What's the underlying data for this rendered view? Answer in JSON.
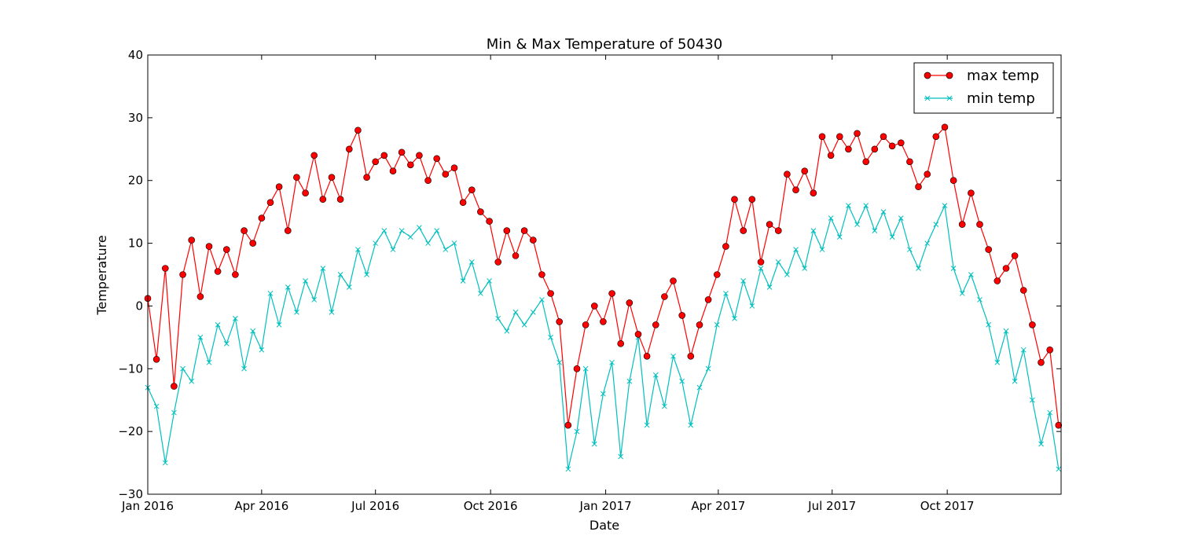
{
  "chart_data": {
    "type": "line",
    "title": "Min & Max Temperature of 50430",
    "xlabel": "Date",
    "ylabel": "Temperature",
    "xlim": [
      "2016-01-01",
      "2017-12-31"
    ],
    "ylim": [
      -30,
      40
    ],
    "yticks": [
      -30,
      -20,
      -10,
      0,
      10,
      20,
      30,
      40
    ],
    "xticks": [
      {
        "date": "2016-01-01",
        "label": "Jan 2016"
      },
      {
        "date": "2016-04-01",
        "label": "Apr 2016"
      },
      {
        "date": "2016-07-01",
        "label": "Jul 2016"
      },
      {
        "date": "2016-10-01",
        "label": "Oct 2016"
      },
      {
        "date": "2017-01-01",
        "label": "Jan 2017"
      },
      {
        "date": "2017-04-01",
        "label": "Apr 2017"
      },
      {
        "date": "2017-07-01",
        "label": "Jul 2017"
      },
      {
        "date": "2017-10-01",
        "label": "Oct 2017"
      }
    ],
    "grid": false,
    "legend_position": "top-right",
    "series": [
      {
        "name": "max temp",
        "color": "#ff0000",
        "marker": "circle",
        "points": [
          {
            "date": "2016-01-01",
            "value": 1.2
          },
          {
            "date": "2016-01-08",
            "value": -8.5
          },
          {
            "date": "2016-01-15",
            "value": 6.0
          },
          {
            "date": "2016-01-22",
            "value": -12.8
          },
          {
            "date": "2016-01-29",
            "value": 5.0
          },
          {
            "date": "2016-02-05",
            "value": 10.5
          },
          {
            "date": "2016-02-12",
            "value": 1.5
          },
          {
            "date": "2016-02-19",
            "value": 9.5
          },
          {
            "date": "2016-02-26",
            "value": 5.5
          },
          {
            "date": "2016-03-04",
            "value": 9.0
          },
          {
            "date": "2016-03-11",
            "value": 5.0
          },
          {
            "date": "2016-03-18",
            "value": 12.0
          },
          {
            "date": "2016-03-25",
            "value": 10.0
          },
          {
            "date": "2016-04-01",
            "value": 14.0
          },
          {
            "date": "2016-04-08",
            "value": 16.5
          },
          {
            "date": "2016-04-15",
            "value": 19.0
          },
          {
            "date": "2016-04-22",
            "value": 12.0
          },
          {
            "date": "2016-04-29",
            "value": 20.5
          },
          {
            "date": "2016-05-06",
            "value": 18.0
          },
          {
            "date": "2016-05-13",
            "value": 24.0
          },
          {
            "date": "2016-05-20",
            "value": 17.0
          },
          {
            "date": "2016-05-27",
            "value": 20.5
          },
          {
            "date": "2016-06-03",
            "value": 17.0
          },
          {
            "date": "2016-06-10",
            "value": 25.0
          },
          {
            "date": "2016-06-17",
            "value": 28.0
          },
          {
            "date": "2016-06-24",
            "value": 20.5
          },
          {
            "date": "2016-07-01",
            "value": 23.0
          },
          {
            "date": "2016-07-08",
            "value": 24.0
          },
          {
            "date": "2016-07-15",
            "value": 21.5
          },
          {
            "date": "2016-07-22",
            "value": 24.5
          },
          {
            "date": "2016-07-29",
            "value": 22.5
          },
          {
            "date": "2016-08-05",
            "value": 24.0
          },
          {
            "date": "2016-08-12",
            "value": 20.0
          },
          {
            "date": "2016-08-19",
            "value": 23.5
          },
          {
            "date": "2016-08-26",
            "value": 21.0
          },
          {
            "date": "2016-09-02",
            "value": 22.0
          },
          {
            "date": "2016-09-09",
            "value": 16.5
          },
          {
            "date": "2016-09-16",
            "value": 18.5
          },
          {
            "date": "2016-09-23",
            "value": 15.0
          },
          {
            "date": "2016-09-30",
            "value": 13.5
          },
          {
            "date": "2016-10-07",
            "value": 7.0
          },
          {
            "date": "2016-10-14",
            "value": 12.0
          },
          {
            "date": "2016-10-21",
            "value": 8.0
          },
          {
            "date": "2016-10-28",
            "value": 12.0
          },
          {
            "date": "2016-11-04",
            "value": 10.5
          },
          {
            "date": "2016-11-11",
            "value": 5.0
          },
          {
            "date": "2016-11-18",
            "value": 2.0
          },
          {
            "date": "2016-11-25",
            "value": -2.5
          },
          {
            "date": "2016-12-02",
            "value": -19.0
          },
          {
            "date": "2016-12-09",
            "value": -10.0
          },
          {
            "date": "2016-12-16",
            "value": -3.0
          },
          {
            "date": "2016-12-23",
            "value": 0.0
          },
          {
            "date": "2016-12-30",
            "value": -2.5
          },
          {
            "date": "2017-01-06",
            "value": 2.0
          },
          {
            "date": "2017-01-13",
            "value": -6.0
          },
          {
            "date": "2017-01-20",
            "value": 0.5
          },
          {
            "date": "2017-01-27",
            "value": -4.5
          },
          {
            "date": "2017-02-03",
            "value": -8.0
          },
          {
            "date": "2017-02-10",
            "value": -3.0
          },
          {
            "date": "2017-02-17",
            "value": 1.5
          },
          {
            "date": "2017-02-24",
            "value": 4.0
          },
          {
            "date": "2017-03-03",
            "value": -1.5
          },
          {
            "date": "2017-03-10",
            "value": -8.0
          },
          {
            "date": "2017-03-17",
            "value": -3.0
          },
          {
            "date": "2017-03-24",
            "value": 1.0
          },
          {
            "date": "2017-03-31",
            "value": 5.0
          },
          {
            "date": "2017-04-07",
            "value": 9.5
          },
          {
            "date": "2017-04-14",
            "value": 17.0
          },
          {
            "date": "2017-04-21",
            "value": 12.0
          },
          {
            "date": "2017-04-28",
            "value": 17.0
          },
          {
            "date": "2017-05-05",
            "value": 7.0
          },
          {
            "date": "2017-05-12",
            "value": 13.0
          },
          {
            "date": "2017-05-19",
            "value": 12.0
          },
          {
            "date": "2017-05-26",
            "value": 21.0
          },
          {
            "date": "2017-06-02",
            "value": 18.5
          },
          {
            "date": "2017-06-09",
            "value": 21.5
          },
          {
            "date": "2017-06-16",
            "value": 18.0
          },
          {
            "date": "2017-06-23",
            "value": 27.0
          },
          {
            "date": "2017-06-30",
            "value": 24.0
          },
          {
            "date": "2017-07-07",
            "value": 27.0
          },
          {
            "date": "2017-07-14",
            "value": 25.0
          },
          {
            "date": "2017-07-21",
            "value": 27.5
          },
          {
            "date": "2017-07-28",
            "value": 23.0
          },
          {
            "date": "2017-08-04",
            "value": 25.0
          },
          {
            "date": "2017-08-11",
            "value": 27.0
          },
          {
            "date": "2017-08-18",
            "value": 25.5
          },
          {
            "date": "2017-08-25",
            "value": 26.0
          },
          {
            "date": "2017-09-01",
            "value": 23.0
          },
          {
            "date": "2017-09-08",
            "value": 19.0
          },
          {
            "date": "2017-09-15",
            "value": 21.0
          },
          {
            "date": "2017-09-22",
            "value": 27.0
          },
          {
            "date": "2017-09-29",
            "value": 28.5
          },
          {
            "date": "2017-10-06",
            "value": 20.0
          },
          {
            "date": "2017-10-13",
            "value": 13.0
          },
          {
            "date": "2017-10-20",
            "value": 18.0
          },
          {
            "date": "2017-10-27",
            "value": 13.0
          },
          {
            "date": "2017-11-03",
            "value": 9.0
          },
          {
            "date": "2017-11-10",
            "value": 4.0
          },
          {
            "date": "2017-11-17",
            "value": 6.0
          },
          {
            "date": "2017-11-24",
            "value": 8.0
          },
          {
            "date": "2017-12-01",
            "value": 2.5
          },
          {
            "date": "2017-12-08",
            "value": -3.0
          },
          {
            "date": "2017-12-15",
            "value": -9.0
          },
          {
            "date": "2017-12-22",
            "value": -7.0
          },
          {
            "date": "2017-12-29",
            "value": -19.0
          }
        ]
      },
      {
        "name": "min temp",
        "color": "#00bfbf",
        "marker": "x",
        "points": [
          {
            "date": "2016-01-01",
            "value": -13.0
          },
          {
            "date": "2016-01-08",
            "value": -16.0
          },
          {
            "date": "2016-01-15",
            "value": -25.0
          },
          {
            "date": "2016-01-22",
            "value": -17.0
          },
          {
            "date": "2016-01-29",
            "value": -10.0
          },
          {
            "date": "2016-02-05",
            "value": -12.0
          },
          {
            "date": "2016-02-12",
            "value": -5.0
          },
          {
            "date": "2016-02-19",
            "value": -9.0
          },
          {
            "date": "2016-02-26",
            "value": -3.0
          },
          {
            "date": "2016-03-04",
            "value": -6.0
          },
          {
            "date": "2016-03-11",
            "value": -2.0
          },
          {
            "date": "2016-03-18",
            "value": -10.0
          },
          {
            "date": "2016-03-25",
            "value": -4.0
          },
          {
            "date": "2016-04-01",
            "value": -7.0
          },
          {
            "date": "2016-04-08",
            "value": 2.0
          },
          {
            "date": "2016-04-15",
            "value": -3.0
          },
          {
            "date": "2016-04-22",
            "value": 3.0
          },
          {
            "date": "2016-04-29",
            "value": -1.0
          },
          {
            "date": "2016-05-06",
            "value": 4.0
          },
          {
            "date": "2016-05-13",
            "value": 1.0
          },
          {
            "date": "2016-05-20",
            "value": 6.0
          },
          {
            "date": "2016-05-27",
            "value": -1.0
          },
          {
            "date": "2016-06-03",
            "value": 5.0
          },
          {
            "date": "2016-06-10",
            "value": 3.0
          },
          {
            "date": "2016-06-17",
            "value": 9.0
          },
          {
            "date": "2016-06-24",
            "value": 5.0
          },
          {
            "date": "2016-07-01",
            "value": 10.0
          },
          {
            "date": "2016-07-08",
            "value": 12.0
          },
          {
            "date": "2016-07-15",
            "value": 9.0
          },
          {
            "date": "2016-07-22",
            "value": 12.0
          },
          {
            "date": "2016-07-29",
            "value": 11.0
          },
          {
            "date": "2016-08-05",
            "value": 12.5
          },
          {
            "date": "2016-08-12",
            "value": 10.0
          },
          {
            "date": "2016-08-19",
            "value": 12.0
          },
          {
            "date": "2016-08-26",
            "value": 9.0
          },
          {
            "date": "2016-09-02",
            "value": 10.0
          },
          {
            "date": "2016-09-09",
            "value": 4.0
          },
          {
            "date": "2016-09-16",
            "value": 7.0
          },
          {
            "date": "2016-09-23",
            "value": 2.0
          },
          {
            "date": "2016-09-30",
            "value": 4.0
          },
          {
            "date": "2016-10-07",
            "value": -2.0
          },
          {
            "date": "2016-10-14",
            "value": -4.0
          },
          {
            "date": "2016-10-21",
            "value": -1.0
          },
          {
            "date": "2016-10-28",
            "value": -3.0
          },
          {
            "date": "2016-11-04",
            "value": -1.0
          },
          {
            "date": "2016-11-11",
            "value": 1.0
          },
          {
            "date": "2016-11-18",
            "value": -5.0
          },
          {
            "date": "2016-11-25",
            "value": -9.0
          },
          {
            "date": "2016-12-02",
            "value": -26.0
          },
          {
            "date": "2016-12-09",
            "value": -20.0
          },
          {
            "date": "2016-12-16",
            "value": -10.0
          },
          {
            "date": "2016-12-23",
            "value": -22.0
          },
          {
            "date": "2016-12-30",
            "value": -14.0
          },
          {
            "date": "2017-01-06",
            "value": -9.0
          },
          {
            "date": "2017-01-13",
            "value": -24.0
          },
          {
            "date": "2017-01-20",
            "value": -12.0
          },
          {
            "date": "2017-01-27",
            "value": -5.0
          },
          {
            "date": "2017-02-03",
            "value": -19.0
          },
          {
            "date": "2017-02-10",
            "value": -11.0
          },
          {
            "date": "2017-02-17",
            "value": -16.0
          },
          {
            "date": "2017-02-24",
            "value": -8.0
          },
          {
            "date": "2017-03-03",
            "value": -12.0
          },
          {
            "date": "2017-03-10",
            "value": -19.0
          },
          {
            "date": "2017-03-17",
            "value": -13.0
          },
          {
            "date": "2017-03-24",
            "value": -10.0
          },
          {
            "date": "2017-03-31",
            "value": -3.0
          },
          {
            "date": "2017-04-07",
            "value": 2.0
          },
          {
            "date": "2017-04-14",
            "value": -2.0
          },
          {
            "date": "2017-04-21",
            "value": 4.0
          },
          {
            "date": "2017-04-28",
            "value": 0.0
          },
          {
            "date": "2017-05-05",
            "value": 6.0
          },
          {
            "date": "2017-05-12",
            "value": 3.0
          },
          {
            "date": "2017-05-19",
            "value": 7.0
          },
          {
            "date": "2017-05-26",
            "value": 5.0
          },
          {
            "date": "2017-06-02",
            "value": 9.0
          },
          {
            "date": "2017-06-09",
            "value": 6.0
          },
          {
            "date": "2017-06-16",
            "value": 12.0
          },
          {
            "date": "2017-06-23",
            "value": 9.0
          },
          {
            "date": "2017-06-30",
            "value": 14.0
          },
          {
            "date": "2017-07-07",
            "value": 11.0
          },
          {
            "date": "2017-07-14",
            "value": 16.0
          },
          {
            "date": "2017-07-21",
            "value": 13.0
          },
          {
            "date": "2017-07-28",
            "value": 16.0
          },
          {
            "date": "2017-08-04",
            "value": 12.0
          },
          {
            "date": "2017-08-11",
            "value": 15.0
          },
          {
            "date": "2017-08-18",
            "value": 11.0
          },
          {
            "date": "2017-08-25",
            "value": 14.0
          },
          {
            "date": "2017-09-01",
            "value": 9.0
          },
          {
            "date": "2017-09-08",
            "value": 6.0
          },
          {
            "date": "2017-09-15",
            "value": 10.0
          },
          {
            "date": "2017-09-22",
            "value": 13.0
          },
          {
            "date": "2017-09-29",
            "value": 16.0
          },
          {
            "date": "2017-10-06",
            "value": 6.0
          },
          {
            "date": "2017-10-13",
            "value": 2.0
          },
          {
            "date": "2017-10-20",
            "value": 5.0
          },
          {
            "date": "2017-10-27",
            "value": 1.0
          },
          {
            "date": "2017-11-03",
            "value": -3.0
          },
          {
            "date": "2017-11-10",
            "value": -9.0
          },
          {
            "date": "2017-11-17",
            "value": -4.0
          },
          {
            "date": "2017-11-24",
            "value": -12.0
          },
          {
            "date": "2017-12-01",
            "value": -7.0
          },
          {
            "date": "2017-12-08",
            "value": -15.0
          },
          {
            "date": "2017-12-15",
            "value": -22.0
          },
          {
            "date": "2017-12-22",
            "value": -17.0
          },
          {
            "date": "2017-12-29",
            "value": -26.0
          }
        ]
      }
    ]
  }
}
